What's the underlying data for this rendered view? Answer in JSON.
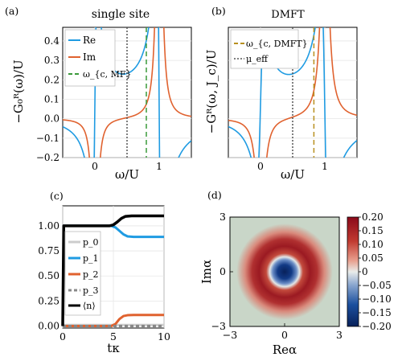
{
  "chart_data": [
    {
      "type": "line",
      "panel": "(a)",
      "title": "single site",
      "xlabel": "ω/U",
      "ylabel": "−G₀ᴿ(ω)/U",
      "xlim": [
        -0.5,
        1.5
      ],
      "ylim": [
        -0.2,
        0.47
      ],
      "xticks": [
        0,
        1
      ],
      "yticks": [
        -0.2,
        -0.1,
        0.0,
        0.1,
        0.2,
        0.3,
        0.4
      ],
      "ytick_labels": [
        "−0.2",
        "−0.1",
        "0.0",
        "0.1",
        "0.2",
        "0.3",
        "0.4"
      ],
      "grid": true,
      "legend": "top-left",
      "series": [
        {
          "name": "Re",
          "color": "#1f9be2",
          "kind": "re",
          "poles": [
            0,
            1
          ],
          "eta": 0.04
        },
        {
          "name": "Im",
          "color": "#e0622f",
          "kind": "im",
          "poles": [
            0,
            1
          ],
          "eta": 0.04
        },
        {
          "name": "ω_{c, MF}",
          "color": "#3a9a3a",
          "kind": "vline",
          "x": 0.8,
          "dash": "6,4"
        },
        {
          "name": "",
          "color": "#555555",
          "kind": "vline",
          "x": 0.5,
          "dash": "2,2"
        }
      ]
    },
    {
      "type": "line",
      "panel": "(b)",
      "title": "DMFT",
      "xlabel": "ω/U",
      "ylabel": "−Gᴿ(ω, J_c)/U",
      "xlim": [
        -0.5,
        1.5
      ],
      "ylim": [
        -0.2,
        0.47
      ],
      "xticks": [
        0,
        1
      ],
      "grid": true,
      "legend": "top-left",
      "series": [
        {
          "name": "",
          "color": "#1f9be2",
          "kind": "re",
          "poles": [
            0,
            1
          ],
          "eta": 0.06
        },
        {
          "name": "",
          "color": "#e0622f",
          "kind": "im",
          "poles": [
            0,
            1
          ],
          "eta": 0.06
        },
        {
          "name": "ω_{c, DMFT}",
          "color": "#b8901f",
          "kind": "vline",
          "x": 0.83,
          "dash": "6,4"
        },
        {
          "name": "μ_eff",
          "color": "#555555",
          "kind": "vline",
          "x": 0.5,
          "dash": "2,2"
        }
      ]
    },
    {
      "type": "line",
      "panel": "(c)",
      "xlabel": "tκ",
      "ylabel": "",
      "xlim": [
        0,
        10
      ],
      "ylim": [
        -0.02,
        1.2
      ],
      "xticks": [
        0,
        5,
        10
      ],
      "yticks": [
        0.0,
        0.25,
        0.5,
        0.75,
        1.0
      ],
      "ytick_labels": [
        "0.00",
        "0.25",
        "0.50",
        "0.75",
        "1.00"
      ],
      "grid": true,
      "legend": "bottom-left",
      "series": [
        {
          "name": "p_0",
          "color": "#cccccc",
          "dash": "",
          "width": 3,
          "points": [
            [
              0,
              0.01
            ],
            [
              10,
              0.01
            ]
          ]
        },
        {
          "name": "p_1",
          "color": "#1f9be2",
          "dash": "",
          "width": 3,
          "points": [
            [
              0,
              1.0
            ],
            [
              4.8,
              1.0
            ],
            [
              5.2,
              0.985
            ],
            [
              5.6,
              0.95
            ],
            [
              6.0,
              0.915
            ],
            [
              6.4,
              0.895
            ],
            [
              7,
              0.89
            ],
            [
              10,
              0.89
            ]
          ]
        },
        {
          "name": "p_2",
          "color": "#e0622f",
          "dash": "",
          "width": 3,
          "points": [
            [
              0,
              0.0
            ],
            [
              4.8,
              0.0
            ],
            [
              5.2,
              0.02
            ],
            [
              5.6,
              0.07
            ],
            [
              6.0,
              0.1
            ],
            [
              6.4,
              0.108
            ],
            [
              7,
              0.11
            ],
            [
              10,
              0.11
            ]
          ]
        },
        {
          "name": "p_3",
          "color": "#888888",
          "dash": "4,3",
          "width": 3,
          "points": [
            [
              0,
              0.0
            ],
            [
              10,
              0.0
            ]
          ]
        },
        {
          "name": "⟨n⟩",
          "color": "#000000",
          "dash": "",
          "width": 3.5,
          "points": [
            [
              0,
              0.0
            ],
            [
              0.1,
              1.0
            ],
            [
              4.6,
              1.0
            ],
            [
              5.0,
              1.01
            ],
            [
              5.4,
              1.04
            ],
            [
              5.8,
              1.075
            ],
            [
              6.2,
              1.095
            ],
            [
              6.8,
              1.1
            ],
            [
              10,
              1.1
            ]
          ]
        }
      ]
    },
    {
      "type": "heatmap",
      "panel": "(d)",
      "xlabel": "Reα",
      "ylabel": "Imα",
      "xlim": [
        -3,
        3
      ],
      "ylim": [
        -3,
        3
      ],
      "xticks": [
        -3,
        0,
        3
      ],
      "yticks": [
        -3,
        0,
        3
      ],
      "colorbar": {
        "min": -0.2,
        "max": 0.2,
        "ticks": [
          0.2,
          0.15,
          0.1,
          0.05,
          0,
          -0.05,
          -0.1,
          -0.15,
          -0.2
        ],
        "tick_labels": [
          "0.20",
          "0.15",
          "0.10",
          "0.05",
          "0",
          "−0.05",
          "−0.10",
          "−0.15",
          "−0.20"
        ],
        "colors": [
          "#08215a",
          "#1c4f9e",
          "#8aa6cf",
          "#c9d6c8",
          "#e8a08f",
          "#c13a30",
          "#8b0a1a"
        ]
      }
    }
  ]
}
